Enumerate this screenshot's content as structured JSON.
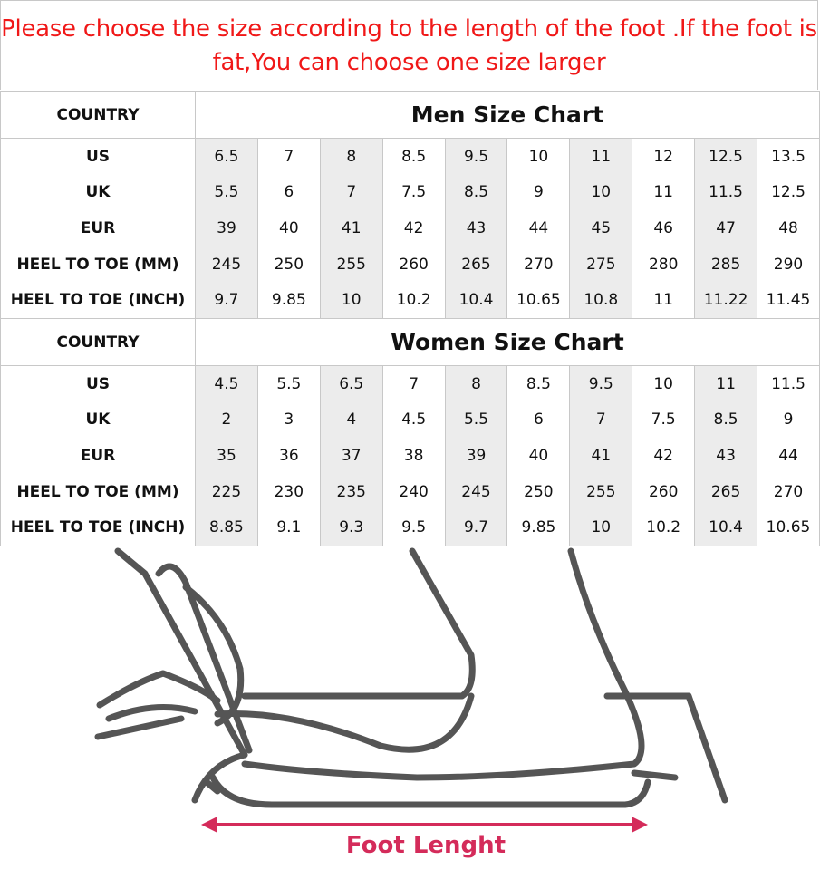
{
  "notice": "Please choose the size according to the length of the foot .If the foot is fat,You can choose one size larger",
  "shade_color": "#ececec",
  "men": {
    "country_label": "COUNTRY",
    "title": "Men Size Chart",
    "rows": [
      {
        "label": "US",
        "values": [
          "6.5",
          "7",
          "8",
          "8.5",
          "9.5",
          "10",
          "11",
          "12",
          "12.5",
          "13.5"
        ]
      },
      {
        "label": "UK",
        "values": [
          "5.5",
          "6",
          "7",
          "7.5",
          "8.5",
          "9",
          "10",
          "11",
          "11.5",
          "12.5"
        ]
      },
      {
        "label": "EUR",
        "values": [
          "39",
          "40",
          "41",
          "42",
          "43",
          "44",
          "45",
          "46",
          "47",
          "48"
        ]
      },
      {
        "label": "HEEL TO TOE (MM)",
        "values": [
          "245",
          "250",
          "255",
          "260",
          "265",
          "270",
          "275",
          "280",
          "285",
          "290"
        ]
      },
      {
        "label": "HEEL TO TOE (INCH)",
        "values": [
          "9.7",
          "9.85",
          "10",
          "10.2",
          "10.4",
          "10.65",
          "10.8",
          "11",
          "11.22",
          "11.45"
        ]
      }
    ]
  },
  "women": {
    "country_label": "COUNTRY",
    "title": "Women Size Chart",
    "rows": [
      {
        "label": "US",
        "values": [
          "4.5",
          "5.5",
          "6.5",
          "7",
          "8",
          "8.5",
          "9.5",
          "10",
          "11",
          "11.5"
        ]
      },
      {
        "label": "UK",
        "values": [
          "2",
          "3",
          "4",
          "4.5",
          "5.5",
          "6",
          "7",
          "7.5",
          "8.5",
          "9"
        ]
      },
      {
        "label": "EUR",
        "values": [
          "35",
          "36",
          "37",
          "38",
          "39",
          "40",
          "41",
          "42",
          "43",
          "44"
        ]
      },
      {
        "label": "HEEL TO TOE (MM)",
        "values": [
          "225",
          "230",
          "235",
          "240",
          "245",
          "250",
          "255",
          "260",
          "265",
          "270"
        ]
      },
      {
        "label": "HEEL TO TOE (INCH)",
        "values": [
          "8.85",
          "9.1",
          "9.3",
          "9.5",
          "9.7",
          "9.85",
          "10",
          "10.2",
          "10.4",
          "10.65"
        ]
      }
    ]
  },
  "illustration": {
    "caption": "Foot Lenght",
    "caption_color": "#d42b5a",
    "arrow_color": "#d42b5a"
  }
}
